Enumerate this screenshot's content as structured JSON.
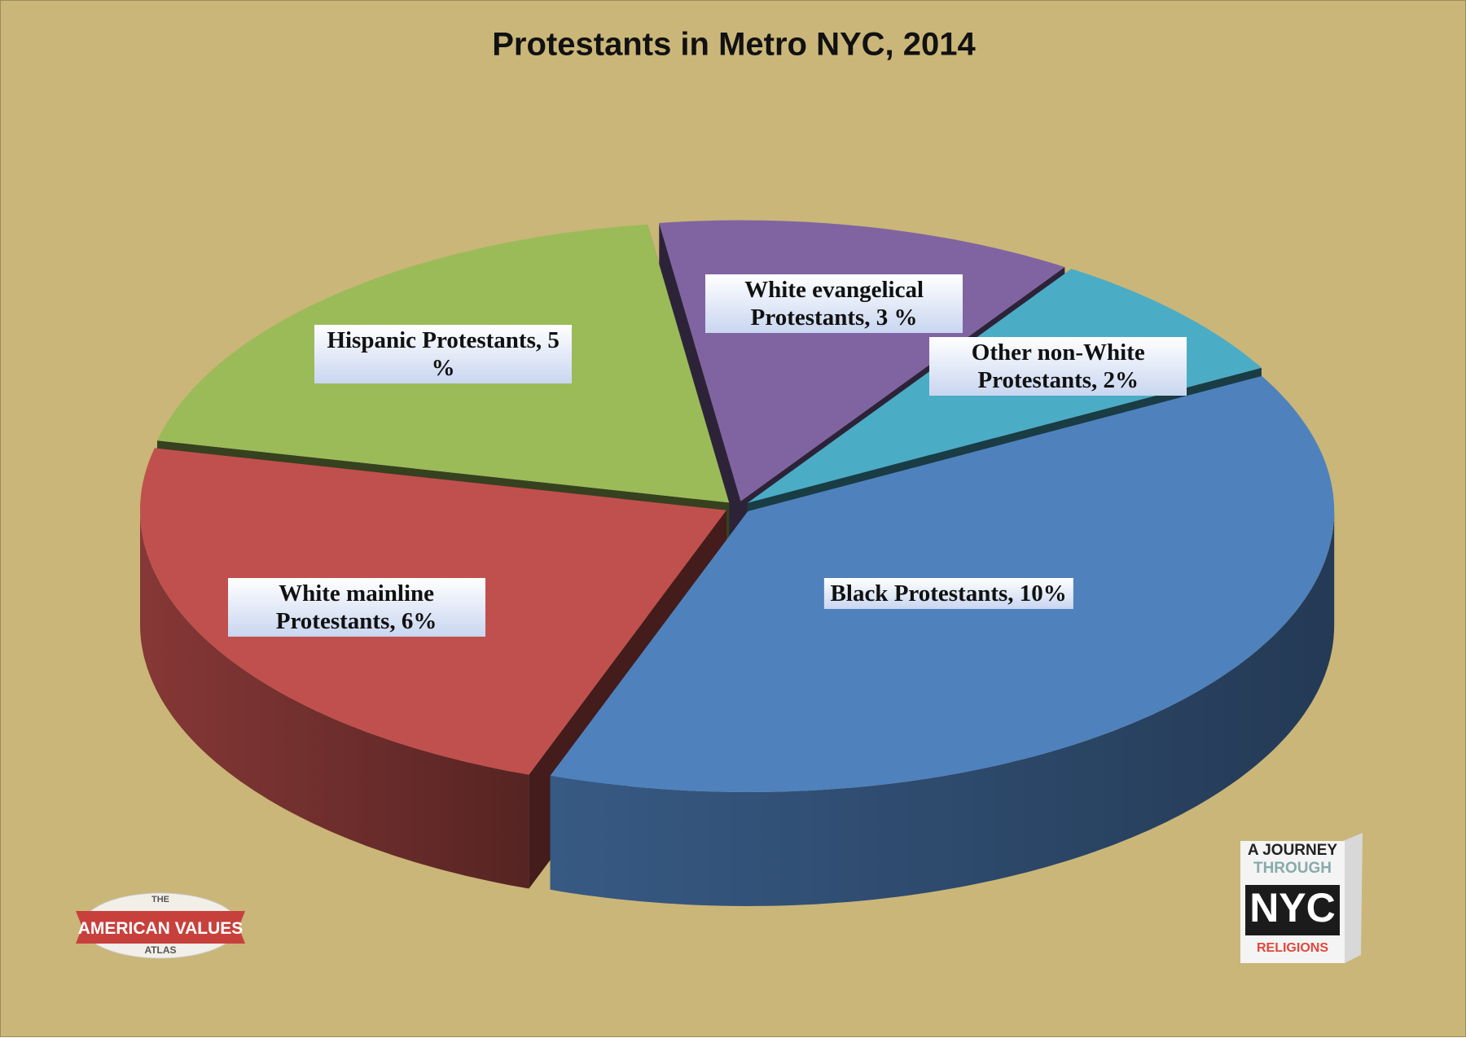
{
  "chart_data": {
    "type": "pie",
    "title": "Protestants in Metro NYC, 2014",
    "values": [
      3,
      2,
      10,
      6,
      5
    ],
    "value_labels": [
      "White evangelical Protestants, 3 %",
      "Other non-White Protestants, 2%",
      "Black Protestants, 10%",
      "White mainline Protestants, 6%",
      "Hispanic Protestants, 5 %"
    ],
    "colors": [
      "#8064a2",
      "#4bacc6",
      "#4f81bd",
      "#c0504d",
      "#9bbb59"
    ],
    "three_d": true
  },
  "logos": {
    "left": [
      "THE",
      "AMERICAN VALUES",
      "ATLAS"
    ],
    "right": [
      "A JOURNEY",
      "THROUGH",
      "NYC",
      "RELIGIONS"
    ]
  }
}
